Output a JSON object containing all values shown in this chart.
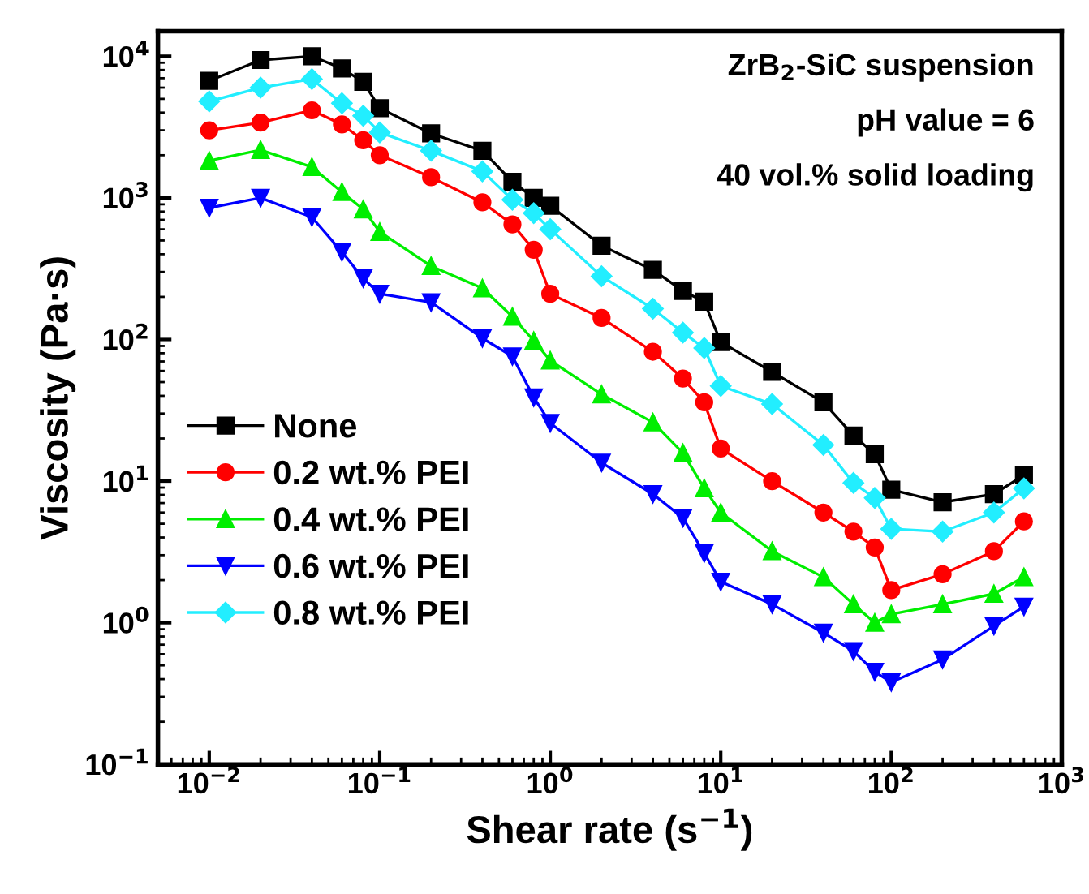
{
  "chart_data": {
    "type": "line",
    "xlabel": "Shear rate (s$^{−1}$)",
    "ylabel": "Viscosity (Pa·s)",
    "log": "xy",
    "x": [
      0.01,
      0.02,
      0.04,
      0.06,
      0.08,
      0.1,
      0.2,
      0.4,
      0.6,
      0.8,
      1,
      2,
      4,
      6,
      8,
      10,
      20,
      40,
      60,
      80,
      100,
      200,
      400,
      600
    ],
    "xlim": [
      0.005,
      1000
    ],
    "ylim": [
      0.1,
      15000
    ],
    "xticks": [
      {
        "value": 0.01,
        "label": "10$^{−2}$"
      },
      {
        "value": 0.1,
        "label": "10$^{−1}$"
      },
      {
        "value": 1,
        "label": "10$^{0}$"
      },
      {
        "value": 10,
        "label": "10$^{1}$"
      },
      {
        "value": 100,
        "label": "10$^{2}$"
      },
      {
        "value": 1000,
        "label": "10$^{3}$"
      }
    ],
    "yticks": [
      {
        "value": 0.1,
        "label": "10$^{−1}$"
      },
      {
        "value": 1,
        "label": "10$^{0}$"
      },
      {
        "value": 10,
        "label": "10$^{1}$"
      },
      {
        "value": 100,
        "label": "10$^{2}$"
      },
      {
        "value": 1000,
        "label": "10$^{3}$"
      },
      {
        "value": 10000,
        "label": "10$^{4}$"
      }
    ],
    "grid": false,
    "legend": "bottom left",
    "line_style": "solid",
    "annotations": [
      "ZrB$_{2}$-SiC suspension",
      "pH value = 6",
      "40 vol.% solid loading"
    ],
    "series": [
      {
        "name": "None",
        "color": "#000000",
        "marker": "square",
        "values": [
          6700,
          9400,
          10000,
          8200,
          6600,
          4300,
          2850,
          2150,
          1300,
          1000,
          880,
          460,
          310,
          220,
          185,
          96,
          59,
          36,
          21,
          15.5,
          8.7,
          7.1,
          8.1,
          11
        ]
      },
      {
        "name": "0.2 wt.% PEI",
        "color": "#ff0000",
        "marker": "circle",
        "values": [
          3000,
          3400,
          4150,
          3300,
          2550,
          2000,
          1400,
          930,
          650,
          430,
          210,
          142,
          82,
          53,
          36,
          17,
          10,
          6.0,
          4.4,
          3.4,
          1.7,
          2.2,
          3.2,
          5.2
        ]
      },
      {
        "name": "0.4 wt.% PEI",
        "color": "#00ee00",
        "marker": "triangle",
        "values": [
          1830,
          2180,
          1650,
          1100,
          830,
          575,
          330,
          230,
          145,
          98,
          71,
          41,
          26,
          15.8,
          8.9,
          6.0,
          3.2,
          2.1,
          1.35,
          1.0,
          1.15,
          1.35,
          1.6,
          2.1
        ]
      },
      {
        "name": "0.6 wt.% PEI",
        "color": "#0000ff",
        "marker": "triangle_down",
        "values": [
          850,
          1000,
          730,
          415,
          270,
          210,
          183,
          102,
          76,
          39,
          25.7,
          13.5,
          8.1,
          5.5,
          3.1,
          1.95,
          1.35,
          0.85,
          0.63,
          0.45,
          0.38,
          0.55,
          0.95,
          1.3
        ]
      },
      {
        "name": "0.8 wt.% PEI",
        "color": "#22eeff",
        "marker": "diamond",
        "values": [
          4800,
          6000,
          6900,
          4650,
          3800,
          2900,
          2150,
          1540,
          970,
          780,
          600,
          280,
          165,
          112,
          87,
          47,
          35,
          18,
          9.7,
          7.6,
          4.6,
          4.4,
          6.0,
          8.9
        ]
      }
    ]
  }
}
